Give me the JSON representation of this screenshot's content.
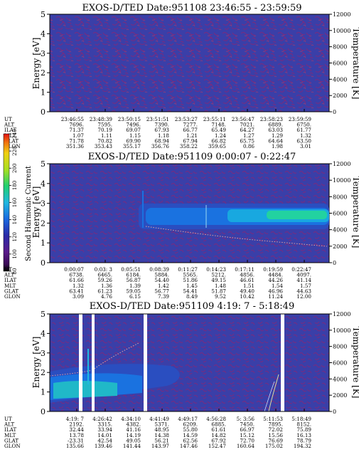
{
  "chart_data": [
    {
      "type": "heatmap",
      "title": "EXOS-D/TED   Date:951108  23:46:55 - 23:59:59",
      "ylabel": "Energy [eV]",
      "y2label": "Temperature [K]",
      "ylim": [
        0,
        5
      ],
      "yticks": [
        "0",
        "1",
        "2",
        "3",
        "4",
        "5"
      ],
      "y2lim": [
        0,
        12000
      ],
      "y2ticks": [
        "0",
        "2000",
        "4000",
        "6000",
        "8000",
        "10000",
        "12000"
      ],
      "ephemeris": {
        "labels": [
          "UT",
          "ALT",
          "ILAT",
          "MLT",
          "GLAT",
          "GLON"
        ],
        "columns": [
          [
            "23:46:55",
            "7696.",
            "71.37",
            "1.07",
            "71.78",
            "351.36"
          ],
          [
            "23:48:39",
            "7595.",
            "70.19",
            "1.11",
            "70.82",
            "353.43"
          ],
          [
            "23:50:15",
            "7496.",
            "69.07",
            "1.15",
            "69.90",
            "355.17"
          ],
          [
            "23:51:51",
            "7390.",
            "67.93",
            "1.18",
            "68.94",
            "356.76"
          ],
          [
            "23:53:27",
            "7277.",
            "66.77",
            "1.21",
            "67.94",
            "358.22"
          ],
          [
            "23:55:11",
            "7148.",
            "65.49",
            "1.24",
            "66.82",
            "359.65"
          ],
          [
            "23:56:47",
            "7021.",
            "64.27",
            "1.27",
            "65.75",
            "0.86"
          ],
          [
            "23:58:23",
            "6889.",
            "63.03",
            "1.29",
            "64.64",
            "1.98"
          ],
          [
            "23:59:59",
            "6750.",
            "61.77",
            "1.32",
            "63.50",
            "3.01"
          ]
        ]
      }
    },
    {
      "type": "heatmap",
      "title": "EXOS-D/TED   Date:951109  0:00:07 - 0:22:47",
      "ylabel": "Energy [eV]",
      "y2label": "Temperature [K]",
      "ylim": [
        0,
        5
      ],
      "yticks": [
        "0",
        "1",
        "2",
        "3",
        "4",
        "5"
      ],
      "y2lim": [
        0,
        12000
      ],
      "y2ticks": [
        "0",
        "2000",
        "4000",
        "6000",
        "8000",
        "10000",
        "12000"
      ],
      "colorbar": {
        "label": "Second Harmonic Current",
        "ticks": [
          "80",
          "100",
          "120",
          "140",
          "160",
          "180",
          "200",
          "220",
          "240"
        ]
      },
      "ephemeris": {
        "labels": [
          "UT",
          "ALT",
          "ILAT",
          "MLT",
          "GLAT",
          "GLON"
        ],
        "columns": [
          [
            "0:00:07",
            "6738.",
            "61.66",
            "1.32",
            "63.41",
            "3.09"
          ],
          [
            "0:03: 3",
            "6465.",
            "59.26",
            "1.36",
            "61.23",
            "4.76"
          ],
          [
            "0:05:51",
            "6184.",
            "56.87",
            "1.39",
            "59.05",
            "6.15"
          ],
          [
            "0:08:39",
            "5884.",
            "54.40",
            "1.42",
            "56.77",
            "7.39"
          ],
          [
            "0:11:27",
            "5565.",
            "51.86",
            "1.45",
            "54.41",
            "8.49"
          ],
          [
            "0:14:23",
            "5212.",
            "49.15",
            "1.48",
            "51.87",
            "9.52"
          ],
          [
            "0:17:11",
            "4856.",
            "46.61",
            "1.51",
            "49.40",
            "10.42"
          ],
          [
            "0:19:59",
            "4484.",
            "44.26",
            "1.54",
            "46.96",
            "11.24"
          ],
          [
            "0:22:47",
            "4097.",
            "41.14",
            "1.57",
            "44.63",
            "12.00"
          ]
        ]
      }
    },
    {
      "type": "heatmap",
      "title": "EXOS-D/TED   Date:951109  4:19: 7 - 5:18:49",
      "ylabel": "Energy [eV]",
      "y2label": "Temperature [K]",
      "ylim": [
        0,
        5
      ],
      "yticks": [
        "0",
        "1",
        "2",
        "3",
        "4",
        "5"
      ],
      "y2lim": [
        0,
        12000
      ],
      "y2ticks": [
        "0",
        "2000",
        "4000",
        "6000",
        "8000",
        "10000",
        "12000"
      ],
      "ephemeris": {
        "labels": [
          "UT",
          "ALT",
          "ILAT",
          "MLT",
          "GLAT",
          "GLON"
        ],
        "columns": [
          [
            "4:19: 7",
            "2192.",
            "32.44",
            "13.78",
            "-23.31",
            "135.66"
          ],
          [
            "4:26:42",
            "3315.",
            "33.94",
            "14.01",
            "42.54",
            "139.46"
          ],
          [
            "4:34:10",
            "4382.",
            "41.16",
            "14.19",
            "49.05",
            "141.44"
          ],
          [
            "4:41:49",
            "5371.",
            "48.95",
            "14.38",
            "56.21",
            "143.97"
          ],
          [
            "4:49:17",
            "6209.",
            "55.80",
            "14.59",
            "62.56",
            "147.46"
          ],
          [
            "4:56:28",
            "6885.",
            "61.61",
            "14.82",
            "67.92",
            "152.47"
          ],
          [
            "5: 3:56",
            "7450.",
            "66.97",
            "15.12",
            "72.70",
            "160.64"
          ],
          [
            "5:11:53",
            "7895.",
            "72.02",
            "15.56",
            "76.69",
            "175.02"
          ],
          [
            "5:18:49",
            "8152.",
            "75.89",
            "16.13",
            "78.79",
            "194.32"
          ]
        ]
      }
    }
  ]
}
